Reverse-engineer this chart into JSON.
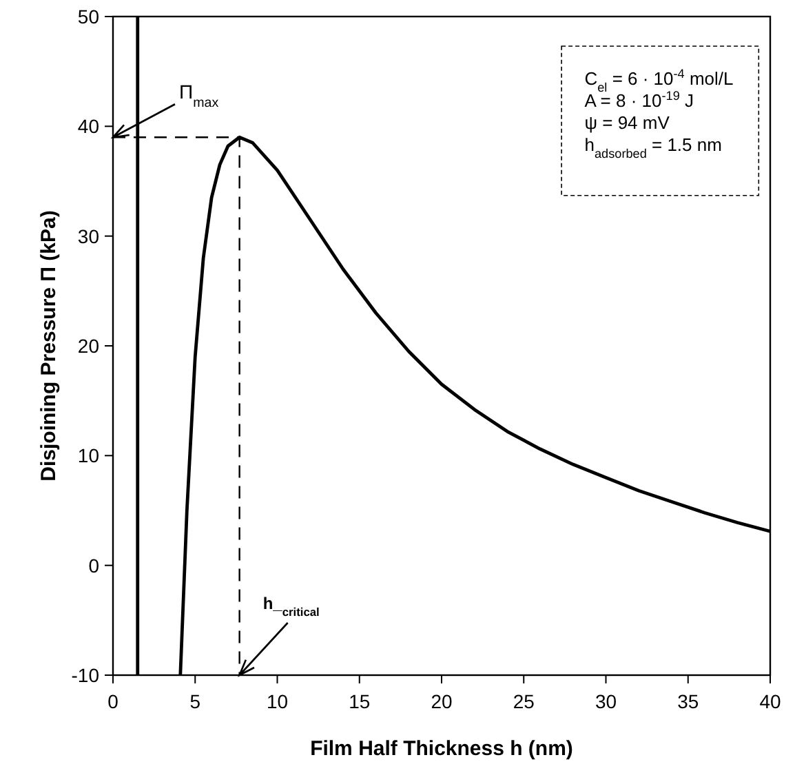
{
  "chart_data": {
    "type": "line",
    "xlabel": "Film Half Thickness h (nm)",
    "ylabel": "Disjoining Pressure Π (kPa)",
    "xlim": [
      0,
      40
    ],
    "xticks": [
      0,
      5,
      10,
      15,
      20,
      25,
      30,
      35,
      40
    ],
    "ylim": [
      -10,
      50
    ],
    "yticks": [
      -10,
      0,
      10,
      20,
      30,
      40,
      50
    ],
    "grid": false,
    "series": [
      {
        "color": "#000000",
        "x": [
          1.5,
          1.5
        ],
        "values": [
          -10,
          50
        ]
      },
      {
        "color": "#000000",
        "x": [
          4.1,
          4.5,
          5,
          5.5,
          6,
          6.5,
          7,
          7.7,
          8.5,
          10,
          12,
          14,
          16,
          18,
          20,
          22,
          24,
          26,
          28,
          30,
          32,
          34,
          36,
          38,
          40
        ],
        "values": [
          -10,
          5,
          19,
          28,
          33.5,
          36.5,
          38.2,
          39,
          38.5,
          36,
          31.5,
          27,
          23,
          19.5,
          16.5,
          14.2,
          12.2,
          10.6,
          9.2,
          8,
          6.8,
          5.8,
          4.8,
          3.9,
          3.1
        ]
      },
      {
        "color": "#000000",
        "line_style": "dashed",
        "x": [
          0,
          7.7,
          7.7
        ],
        "values": [
          39,
          39,
          -10
        ]
      }
    ],
    "annotations": [
      {
        "text": "Π$_{max}$",
        "x": 0,
        "y": 39
      },
      {
        "text": "h_$_{critical}$",
        "x": 7.7,
        "y": -10
      },
      "C$_{el}$ = 6 · 10$^{-4}$ mol/L",
      "A = 8 · 10$^{-19}$ J",
      "ψ = 94 mV",
      "h$_{adsorbed}$ = 1.5 nm"
    ]
  }
}
